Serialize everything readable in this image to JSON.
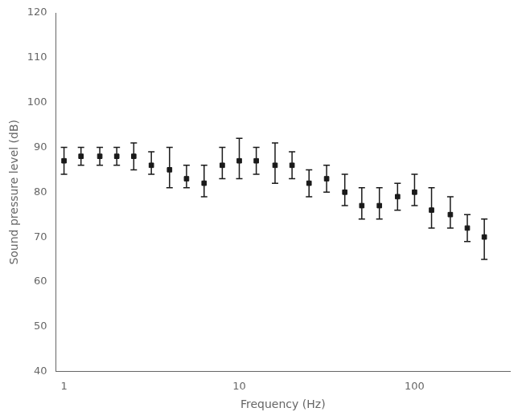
{
  "chart_data": {
    "type": "scatter",
    "xlabel": "Frequency (Hz)",
    "ylabel": "Sound pressure level (dB)",
    "x": [
      1,
      1.25,
      1.6,
      2,
      2.5,
      3.15,
      4,
      5,
      6.3,
      8,
      10,
      12.5,
      16,
      20,
      25,
      31.5,
      40,
      50,
      63,
      80,
      100,
      125,
      160,
      200,
      250
    ],
    "values": [
      87,
      88,
      88,
      88,
      88,
      86,
      85,
      83,
      82,
      86,
      87,
      87,
      86,
      86,
      82,
      83,
      80,
      77,
      77,
      79,
      80,
      76,
      75,
      72,
      70
    ],
    "yerr_upper": [
      3,
      2,
      2,
      2,
      3,
      3,
      5,
      3,
      4,
      4,
      5,
      3,
      5,
      3,
      3,
      3,
      4,
      4,
      4,
      3,
      4,
      5,
      4,
      3,
      4
    ],
    "yerr_lower": [
      3,
      2,
      2,
      2,
      3,
      2,
      4,
      2,
      3,
      3,
      4,
      3,
      4,
      3,
      3,
      3,
      3,
      3,
      3,
      3,
      3,
      4,
      3,
      3,
      5
    ],
    "color": "#1a1a1a",
    "marker": "square",
    "log": "x",
    "xlim": [
      0.9,
      350
    ],
    "xticks": [
      1,
      10,
      100
    ],
    "ylim": [
      40,
      120
    ],
    "yticks": [
      40,
      50,
      60,
      70,
      80,
      90,
      100,
      110,
      120
    ],
    "grid": false
  }
}
